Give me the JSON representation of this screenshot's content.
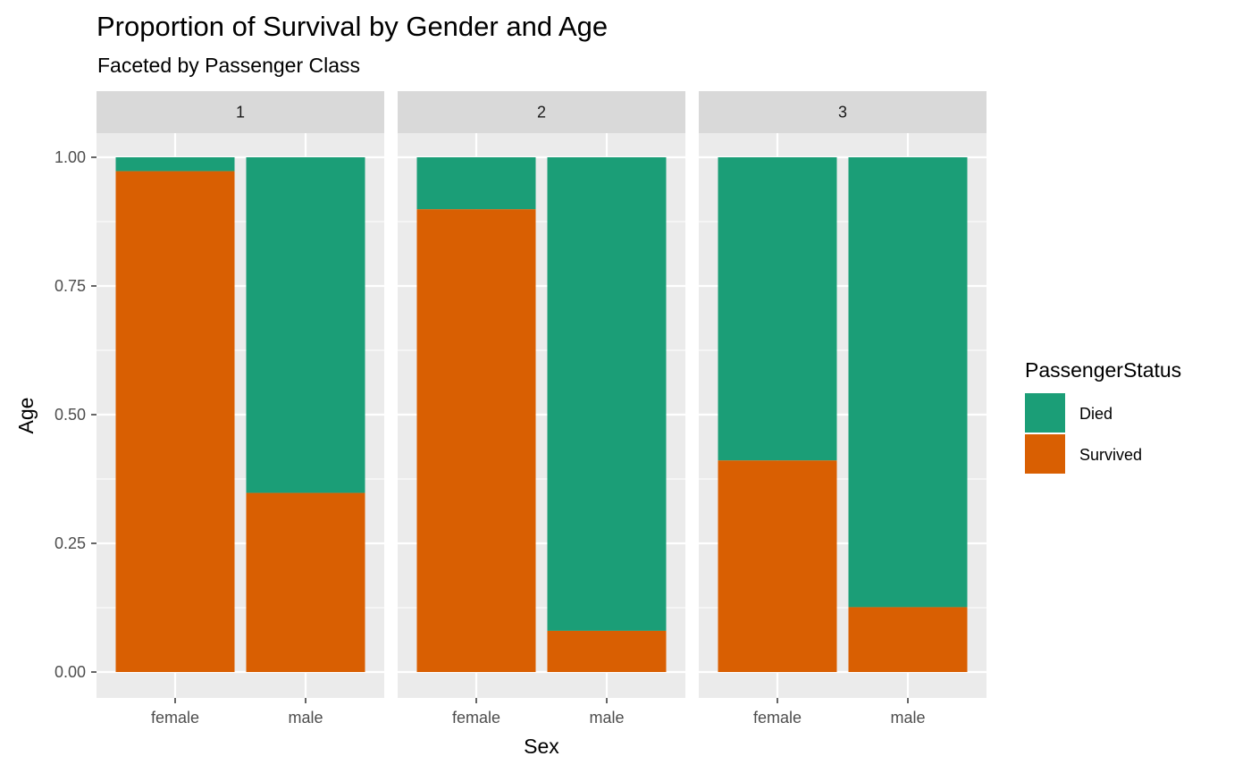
{
  "chart_data": {
    "type": "bar",
    "stacked": true,
    "title": "Proportion of Survival by Gender and Age",
    "subtitle": "Faceted by Passenger Class",
    "xlabel": "Sex",
    "ylabel": "Age",
    "ylim": [
      0,
      1
    ],
    "y_ticks": [
      "0.00",
      "0.25",
      "0.50",
      "0.75",
      "1.00"
    ],
    "y_tick_values": [
      0,
      0.25,
      0.5,
      0.75,
      1.0
    ],
    "categories": [
      "female",
      "male"
    ],
    "legend": {
      "title": "PassengerStatus",
      "placement": "right",
      "entries": [
        {
          "label": "Died",
          "color": "#1b9e77"
        },
        {
          "label": "Survived",
          "color": "#d95f02"
        }
      ]
    },
    "facets": [
      {
        "label": "1",
        "survived": [
          0.973,
          0.348
        ]
      },
      {
        "label": "2",
        "survived": [
          0.899,
          0.08
        ]
      },
      {
        "label": "3",
        "survived": [
          0.411,
          0.126
        ]
      }
    ],
    "grid": true,
    "colors": {
      "panel_bg": "#ebebeb",
      "strip_bg": "#d9d9d9",
      "grid": "#ffffff"
    }
  }
}
